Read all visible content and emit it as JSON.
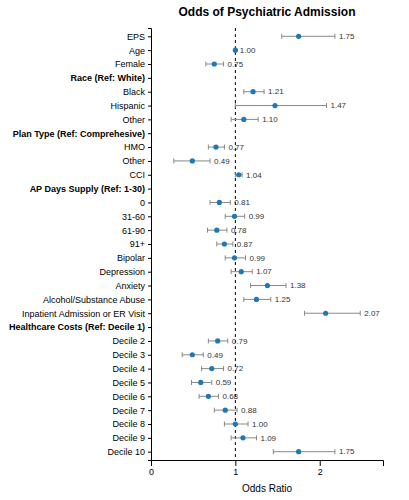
{
  "chart_data": {
    "type": "forest",
    "title": "Odds of Psychiatric Admission",
    "xlabel": "Odds Ratio",
    "xlim": [
      0,
      2.75
    ],
    "xticks": [
      0,
      1,
      2
    ],
    "reference_line": 1,
    "categories": [
      "EPS",
      "Age",
      "Female",
      "Race (Ref: White)",
      "Black",
      "Hispanic",
      "Other",
      "Plan Type (Ref: Comprehesive)",
      "HMO",
      "Other",
      "CCI",
      "AP Days Supply (Ref: 1-30)",
      "0",
      "31-60",
      "61-90",
      "91+",
      "Bipolar",
      "Depression",
      "Anxiety",
      "Alcohol/Substance Abuse",
      "Inpatient Admission or ER Visit",
      "Healthcare Costs (Ref: Decile 1)",
      "Decile 2",
      "Decile 3",
      "Decile 4",
      "Decile 5",
      "Decile 6",
      "Decile 7",
      "Decile 8",
      "Decile 9",
      "Decile 10"
    ],
    "values": [
      1.75,
      1.0,
      0.75,
      null,
      1.21,
      1.47,
      1.1,
      null,
      0.77,
      0.49,
      1.04,
      null,
      0.81,
      0.99,
      0.78,
      0.87,
      0.99,
      1.07,
      1.38,
      1.25,
      2.07,
      null,
      0.79,
      0.49,
      0.72,
      0.59,
      0.68,
      0.88,
      1.0,
      1.09,
      1.75
    ],
    "value_labels": [
      "1.75",
      "1.00",
      "0.75",
      null,
      "1.21",
      "1.47",
      "1.10",
      null,
      "0.77",
      "0.49",
      "1.04",
      null,
      "0.81",
      "0.99",
      "0.78",
      "0.87",
      "0.99",
      "1.07",
      "1.38",
      "1.25",
      "2.07",
      null,
      "0.79",
      "0.49",
      "0.72",
      "0.59",
      "0.68",
      "0.88",
      "1.00",
      "1.09",
      "1.75"
    ],
    "ci_low": [
      1.55,
      0.995,
      0.65,
      null,
      1.1,
      1.0,
      0.95,
      null,
      0.68,
      0.27,
      1.0,
      null,
      0.7,
      0.88,
      0.67,
      0.78,
      0.88,
      0.95,
      1.18,
      1.1,
      1.82,
      null,
      0.68,
      0.37,
      0.6,
      0.48,
      0.57,
      0.75,
      0.87,
      0.95,
      1.45
    ],
    "ci_high": [
      2.18,
      1.005,
      0.86,
      null,
      1.34,
      2.08,
      1.27,
      null,
      0.87,
      0.7,
      1.08,
      null,
      0.94,
      1.11,
      0.9,
      0.97,
      1.12,
      1.2,
      1.6,
      1.42,
      2.48,
      null,
      0.91,
      0.62,
      0.86,
      0.72,
      0.8,
      1.02,
      1.15,
      1.25,
      2.18
    ],
    "data_labels": true
  }
}
